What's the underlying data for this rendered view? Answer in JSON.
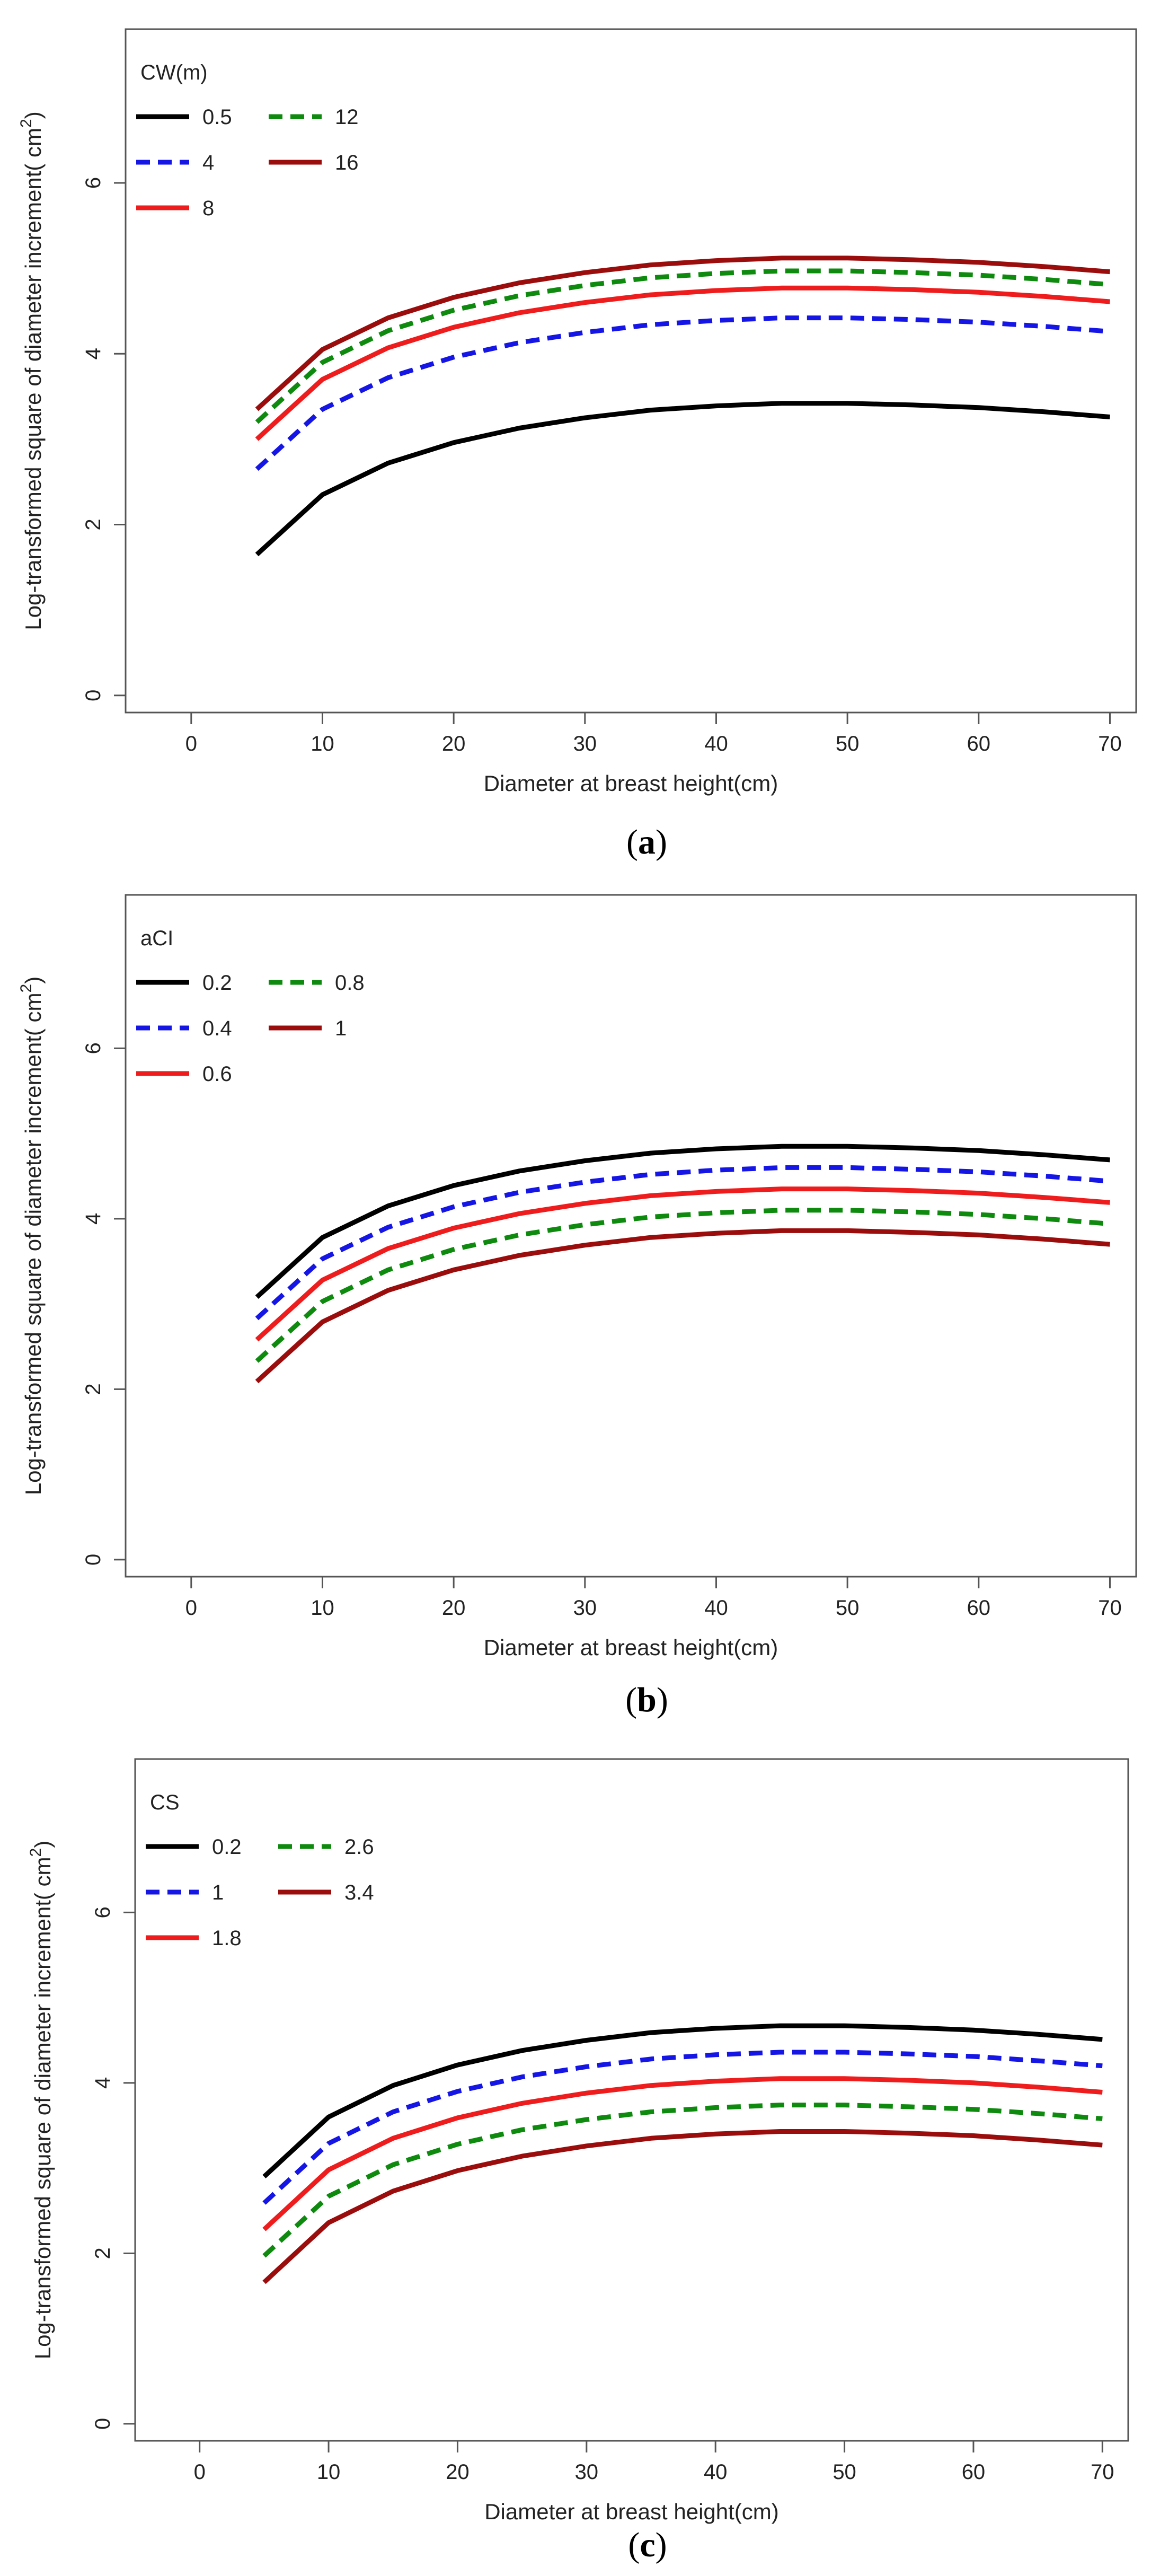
{
  "figure": {
    "panels": [
      "a",
      "b",
      "c"
    ]
  },
  "chart_data": [
    {
      "id": "a",
      "type": "line",
      "caption_label": "a",
      "title": "",
      "xlabel": "Diameter at breast height(cm)",
      "ylabel": "Log-transformed square of diameter increment( cm",
      "ylabel_sup": "2",
      "ylabel_close": ")",
      "xlim": [
        -5,
        72
      ],
      "ylim": [
        -0.2,
        7.8
      ],
      "xticks": [
        0,
        10,
        20,
        30,
        40,
        50,
        60,
        70
      ],
      "yticks": [
        0,
        2,
        4,
        6
      ],
      "grid": false,
      "legend": {
        "title": "CW(m)",
        "placement": "top-left",
        "entries": [
          "0.5",
          "4",
          "8",
          "12",
          "16"
        ]
      },
      "x": [
        5,
        10,
        15,
        20,
        25,
        30,
        35,
        40,
        45,
        50,
        55,
        60,
        65,
        70
      ],
      "series": [
        {
          "name": "0.5",
          "color": "#000000",
          "dash": "solid",
          "values": [
            1.65,
            2.35,
            2.72,
            2.96,
            3.13,
            3.25,
            3.34,
            3.39,
            3.42,
            3.42,
            3.4,
            3.37,
            3.32,
            3.26
          ]
        },
        {
          "name": "4",
          "color": "#1515e6",
          "dash": "dashed",
          "values": [
            2.65,
            3.35,
            3.72,
            3.96,
            4.13,
            4.25,
            4.34,
            4.39,
            4.42,
            4.42,
            4.4,
            4.37,
            4.32,
            4.26
          ]
        },
        {
          "name": "8",
          "color": "#ee1c1c",
          "dash": "solid",
          "values": [
            3.0,
            3.7,
            4.07,
            4.31,
            4.48,
            4.6,
            4.69,
            4.74,
            4.77,
            4.77,
            4.75,
            4.72,
            4.67,
            4.61
          ]
        },
        {
          "name": "12",
          "color": "#0e8a0e",
          "dash": "dashed",
          "values": [
            3.2,
            3.9,
            4.27,
            4.51,
            4.68,
            4.8,
            4.89,
            4.94,
            4.97,
            4.97,
            4.95,
            4.92,
            4.87,
            4.81
          ]
        },
        {
          "name": "16",
          "color": "#9b0d0d",
          "dash": "solid",
          "values": [
            3.35,
            4.05,
            4.42,
            4.66,
            4.83,
            4.95,
            5.04,
            5.09,
            5.12,
            5.12,
            5.1,
            5.07,
            5.02,
            4.96
          ]
        }
      ]
    },
    {
      "id": "b",
      "type": "line",
      "caption_label": "b",
      "title": "",
      "xlabel": "Diameter at breast height(cm)",
      "ylabel": "Log-transformed square of diameter increment( cm",
      "ylabel_sup": "2",
      "ylabel_close": ")",
      "xlim": [
        -5,
        72
      ],
      "ylim": [
        -0.2,
        7.8
      ],
      "xticks": [
        0,
        10,
        20,
        30,
        40,
        50,
        60,
        70
      ],
      "yticks": [
        0,
        2,
        4,
        6
      ],
      "grid": false,
      "legend": {
        "title": "aCI",
        "placement": "top-left",
        "entries": [
          "0.2",
          "0.4",
          "0.6",
          "0.8",
          "1"
        ]
      },
      "x": [
        5,
        10,
        15,
        20,
        25,
        30,
        35,
        40,
        45,
        50,
        55,
        60,
        65,
        70
      ],
      "series": [
        {
          "name": "0.2",
          "color": "#000000",
          "dash": "solid",
          "values": [
            3.08,
            3.78,
            4.15,
            4.39,
            4.56,
            4.68,
            4.77,
            4.82,
            4.85,
            4.85,
            4.83,
            4.8,
            4.75,
            4.69
          ]
        },
        {
          "name": "0.4",
          "color": "#1515e6",
          "dash": "dashed",
          "values": [
            2.83,
            3.53,
            3.9,
            4.14,
            4.31,
            4.43,
            4.52,
            4.57,
            4.6,
            4.6,
            4.58,
            4.55,
            4.5,
            4.44
          ]
        },
        {
          "name": "0.6",
          "color": "#ee1c1c",
          "dash": "solid",
          "values": [
            2.58,
            3.28,
            3.65,
            3.89,
            4.06,
            4.18,
            4.27,
            4.32,
            4.35,
            4.35,
            4.33,
            4.3,
            4.25,
            4.19
          ]
        },
        {
          "name": "0.8",
          "color": "#0e8a0e",
          "dash": "dashed",
          "values": [
            2.33,
            3.03,
            3.4,
            3.64,
            3.81,
            3.93,
            4.02,
            4.07,
            4.1,
            4.1,
            4.08,
            4.05,
            4.0,
            3.94
          ]
        },
        {
          "name": "1",
          "color": "#9b0d0d",
          "dash": "solid",
          "values": [
            2.09,
            2.79,
            3.16,
            3.4,
            3.57,
            3.69,
            3.78,
            3.83,
            3.86,
            3.86,
            3.84,
            3.81,
            3.76,
            3.7
          ]
        }
      ]
    },
    {
      "id": "c",
      "type": "line",
      "caption_label": "c",
      "title": "",
      "xlabel": "Diameter at breast height(cm)",
      "ylabel": "Log-transformed square of diameter increment( cm",
      "ylabel_sup": "2",
      "ylabel_close": ")",
      "xlim": [
        -5,
        72
      ],
      "ylim": [
        -0.2,
        7.8
      ],
      "xticks": [
        0,
        10,
        20,
        30,
        40,
        50,
        60,
        70
      ],
      "yticks": [
        0,
        2,
        4,
        6
      ],
      "grid": false,
      "legend": {
        "title": "CS",
        "placement": "top-left",
        "entries": [
          "0.2",
          "1",
          "1.8",
          "2.6",
          "3.4"
        ]
      },
      "x": [
        5,
        10,
        15,
        20,
        25,
        30,
        35,
        40,
        45,
        50,
        55,
        60,
        65,
        70
      ],
      "series": [
        {
          "name": "0.2",
          "color": "#000000",
          "dash": "solid",
          "values": [
            2.9,
            3.6,
            3.97,
            4.21,
            4.38,
            4.5,
            4.59,
            4.64,
            4.67,
            4.67,
            4.65,
            4.62,
            4.57,
            4.51
          ]
        },
        {
          "name": "1",
          "color": "#1515e6",
          "dash": "dashed",
          "values": [
            2.59,
            3.29,
            3.66,
            3.9,
            4.07,
            4.19,
            4.28,
            4.33,
            4.36,
            4.36,
            4.34,
            4.31,
            4.26,
            4.2
          ]
        },
        {
          "name": "1.8",
          "color": "#ee1c1c",
          "dash": "solid",
          "values": [
            2.28,
            2.98,
            3.35,
            3.59,
            3.76,
            3.88,
            3.97,
            4.02,
            4.05,
            4.05,
            4.03,
            4.0,
            3.95,
            3.89
          ]
        },
        {
          "name": "2.6",
          "color": "#0e8a0e",
          "dash": "dashed",
          "values": [
            1.97,
            2.67,
            3.04,
            3.28,
            3.45,
            3.57,
            3.66,
            3.71,
            3.74,
            3.74,
            3.72,
            3.69,
            3.64,
            3.58
          ]
        },
        {
          "name": "3.4",
          "color": "#9b0d0d",
          "dash": "solid",
          "values": [
            1.66,
            2.36,
            2.73,
            2.97,
            3.14,
            3.26,
            3.35,
            3.4,
            3.43,
            3.43,
            3.41,
            3.38,
            3.33,
            3.27
          ]
        }
      ]
    }
  ]
}
